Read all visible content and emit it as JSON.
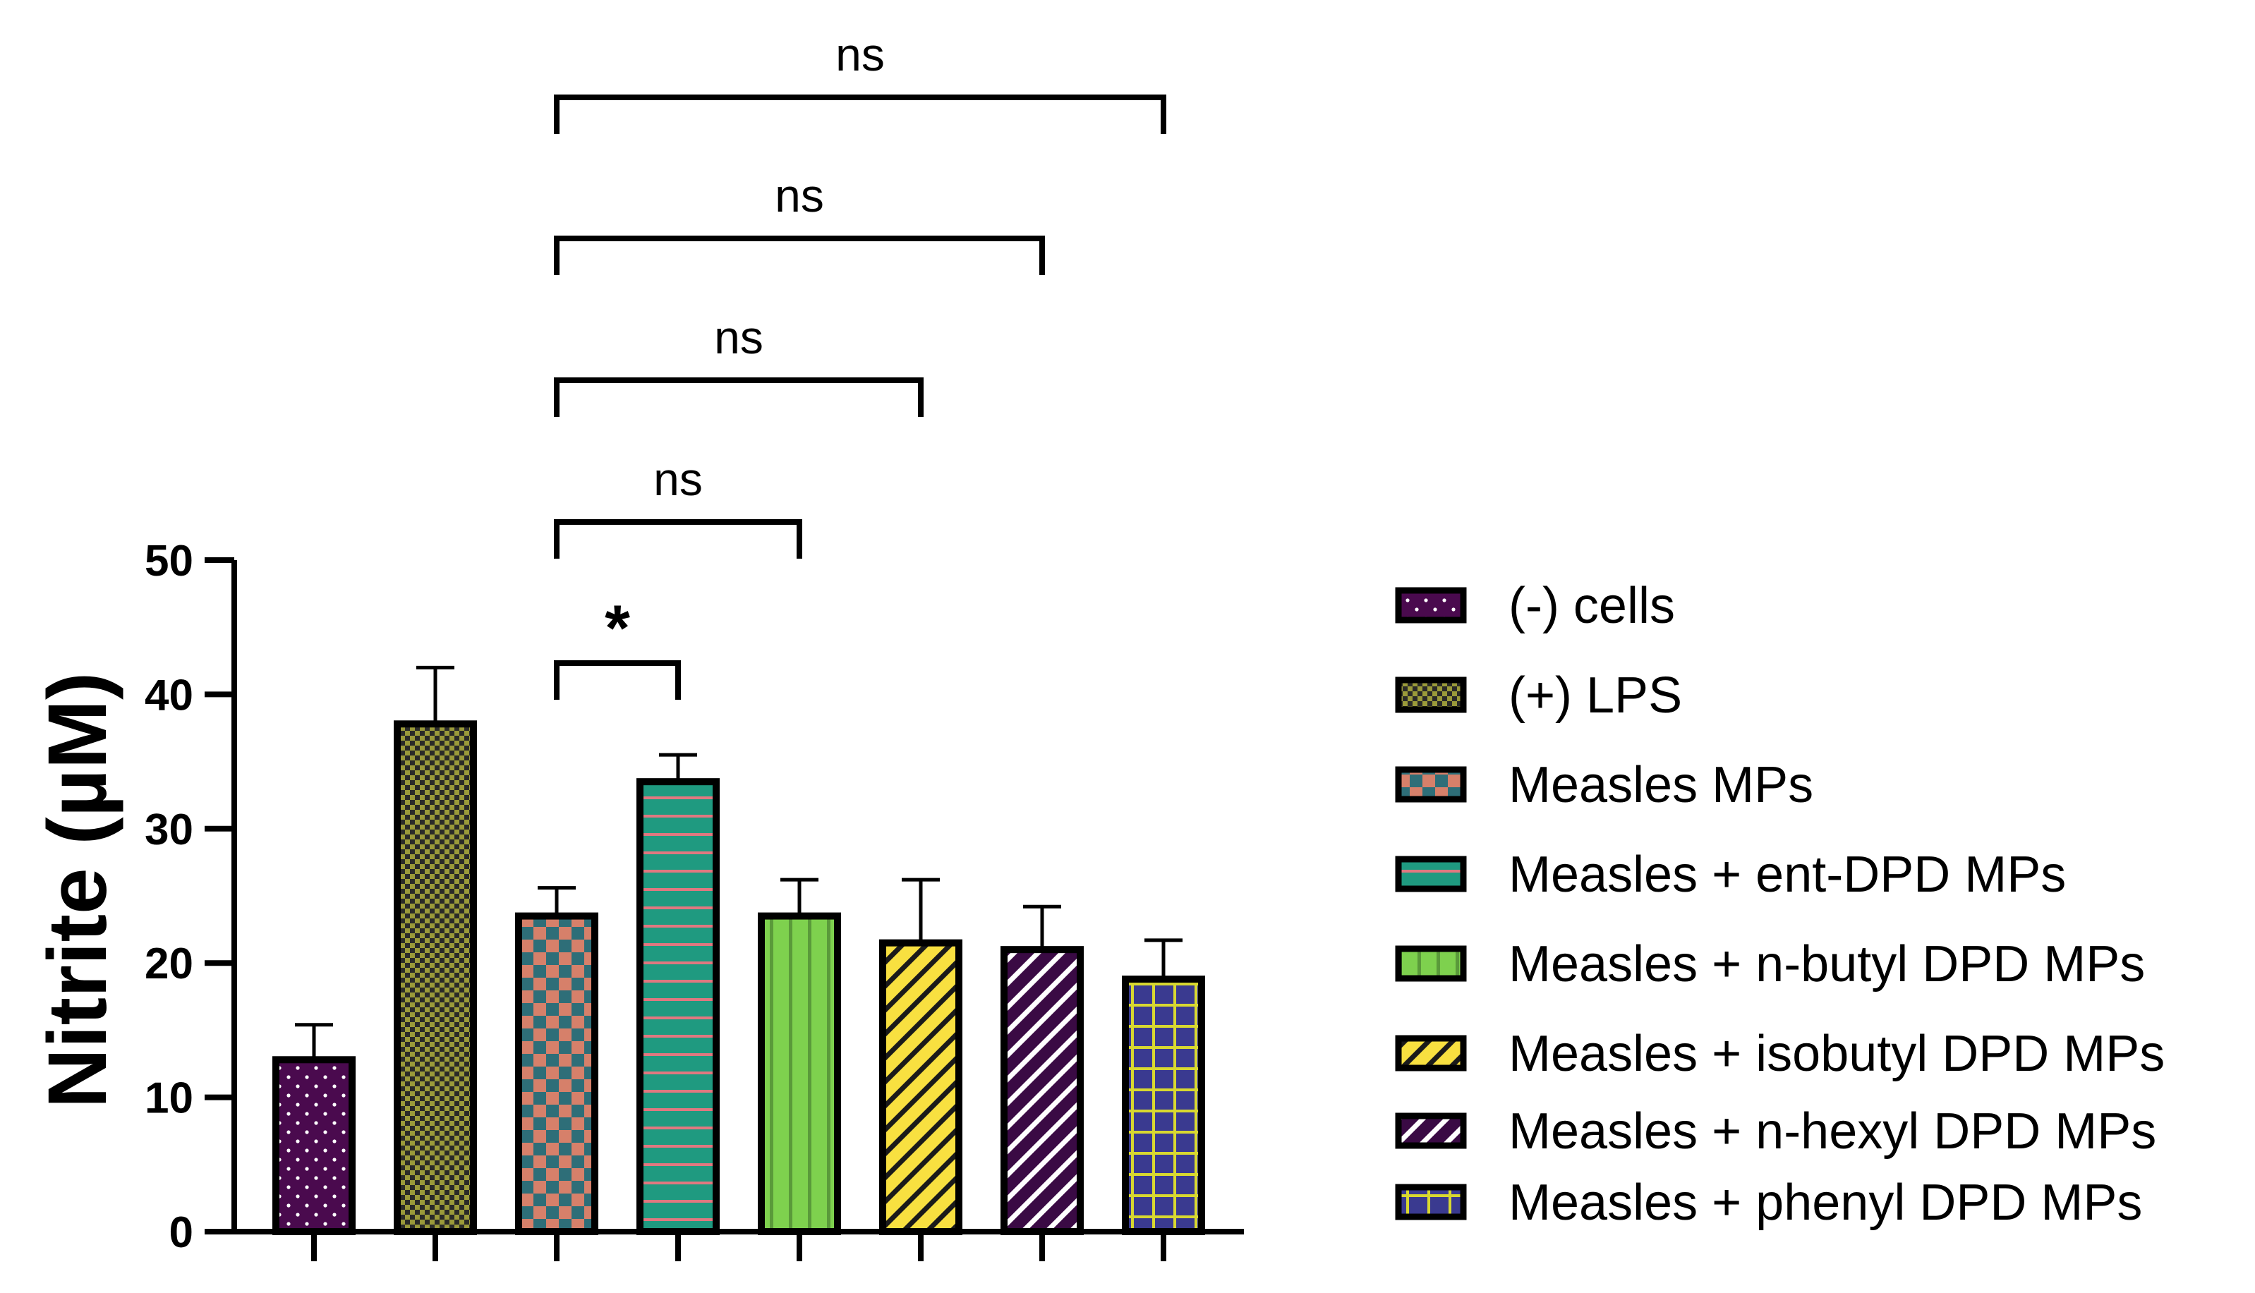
{
  "chart_data": {
    "type": "bar",
    "title": "",
    "xlabel": "",
    "ylabel": "Nitrite (µM)",
    "ylim": [
      0,
      50
    ],
    "yticks": [
      0,
      10,
      20,
      30,
      40,
      50
    ],
    "grid": false,
    "legend_position": "right",
    "categories": [
      "(-) cells",
      "(+) LPS",
      "Measles MPs",
      "Measles + ent-DPD MPs",
      "Measles + n-butyl DPD MPs",
      "Measles + isobutyl DPD MPs",
      "Measles + n-hexyl DPD MPs",
      "Measles + phenyl DPD MPs"
    ],
    "values": [
      12.8,
      37.8,
      23.5,
      33.5,
      23.5,
      21.5,
      21.0,
      18.8
    ],
    "error_upper": [
      15.4,
      42.0,
      25.6,
      35.5,
      26.2,
      26.2,
      24.2,
      21.7
    ],
    "styles": [
      {
        "pattern": "dots",
        "bg": "#4a0a4e",
        "fg": "#ffffff"
      },
      {
        "pattern": "fine-checker",
        "bg": "#2a2a28",
        "fg": "#9a9a3a"
      },
      {
        "pattern": "checker",
        "bg": "#d6806a",
        "fg": "#2e6e78"
      },
      {
        "pattern": "hlines",
        "bg": "#1f9a80",
        "fg": "#e07880"
      },
      {
        "pattern": "vlines",
        "bg": "#7ed14e",
        "fg": "#5a9a3a"
      },
      {
        "pattern": "diag",
        "bg": "#f8e040",
        "fg": "#1a1a1a"
      },
      {
        "pattern": "diag",
        "bg": "#3a0a44",
        "fg": "#ffffff"
      },
      {
        "pattern": "grid",
        "bg": "#3a3a90",
        "fg": "#d8d830"
      }
    ],
    "comparisons": [
      {
        "from": 2,
        "to": 3,
        "label": "*"
      },
      {
        "from": 2,
        "to": 4,
        "label": "ns"
      },
      {
        "from": 2,
        "to": 5,
        "label": "ns"
      },
      {
        "from": 2,
        "to": 6,
        "label": "ns"
      },
      {
        "from": 2,
        "to": 7,
        "label": "ns"
      }
    ]
  }
}
